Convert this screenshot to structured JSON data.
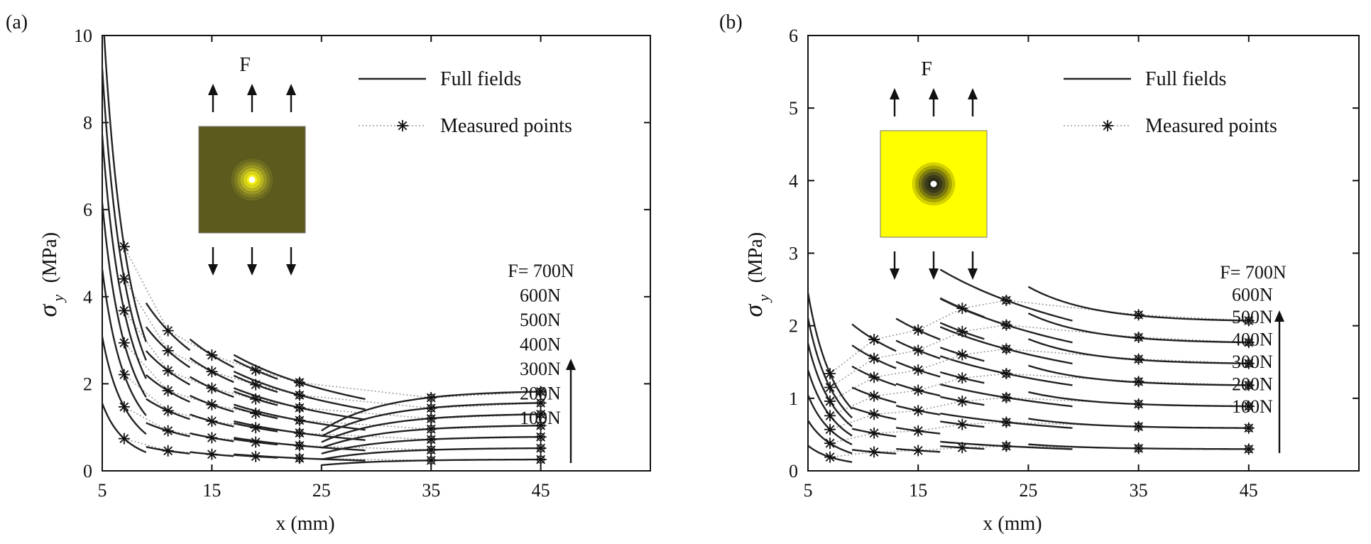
{
  "chart_data": [
    {
      "type": "line",
      "panel_label": "(a)",
      "ylabel_symbol": "σ",
      "ylabel_sub": "y",
      "ylabel_unit": "(MPa)",
      "xlabel": "x (mm)",
      "xlim": [
        5,
        55
      ],
      "ylim": [
        0,
        10
      ],
      "x_ticks": [
        5,
        15,
        25,
        35,
        45
      ],
      "y_ticks": [
        0,
        2,
        4,
        6,
        8,
        10
      ],
      "legend": {
        "full": "Full fields",
        "measured": "Measured points",
        "placement": "top-right"
      },
      "force_title": "F",
      "inset_plate_color": "#5c5a1c",
      "force_labels": [
        "F= 700N",
        "600N",
        "500N",
        "400N",
        "300N",
        "200N",
        "100N"
      ],
      "measured_x": [
        7,
        11,
        15,
        19,
        23,
        35,
        45
      ],
      "series": [
        {
          "name": "100N",
          "values": [
            0.74,
            0.46,
            0.38,
            0.33,
            0.29,
            0.24,
            0.26
          ]
        },
        {
          "name": "200N",
          "values": [
            1.47,
            0.92,
            0.76,
            0.66,
            0.58,
            0.48,
            0.52
          ]
        },
        {
          "name": "300N",
          "values": [
            2.21,
            1.38,
            1.14,
            0.99,
            0.87,
            0.72,
            0.78
          ]
        },
        {
          "name": "400N",
          "values": [
            2.94,
            1.84,
            1.52,
            1.32,
            1.16,
            0.96,
            1.04
          ]
        },
        {
          "name": "500N",
          "values": [
            3.68,
            2.3,
            1.9,
            1.65,
            1.45,
            1.2,
            1.3
          ]
        },
        {
          "name": "600N",
          "values": [
            4.41,
            2.76,
            2.28,
            1.98,
            1.74,
            1.44,
            1.56
          ]
        },
        {
          "name": "700N",
          "values": [
            5.15,
            3.22,
            2.66,
            2.31,
            2.03,
            1.68,
            1.82
          ]
        }
      ]
    },
    {
      "type": "line",
      "panel_label": "(b)",
      "ylabel_symbol": "σ",
      "ylabel_sub": "y",
      "ylabel_unit": "(MPa)",
      "xlabel": "x (mm)",
      "xlim": [
        5,
        55
      ],
      "ylim": [
        0,
        6
      ],
      "x_ticks": [
        5,
        15,
        25,
        35,
        45
      ],
      "y_ticks": [
        0,
        1,
        2,
        3,
        4,
        5,
        6
      ],
      "legend": {
        "full": "Full fields",
        "measured": "Measured points",
        "placement": "top-right"
      },
      "force_title": "F",
      "inset_plate_color": "#ffff00",
      "force_labels": [
        "F= 700N",
        "600N",
        "500N",
        "400N",
        "300N",
        "200N",
        "100N"
      ],
      "measured_x": [
        7,
        11,
        15,
        19,
        23,
        35,
        45
      ],
      "series": [
        {
          "name": "100N",
          "values": [
            0.19,
            0.26,
            0.28,
            0.32,
            0.34,
            0.31,
            0.3
          ]
        },
        {
          "name": "200N",
          "values": [
            0.38,
            0.52,
            0.55,
            0.64,
            0.67,
            0.61,
            0.59
          ]
        },
        {
          "name": "300N",
          "values": [
            0.57,
            0.78,
            0.83,
            0.96,
            1.01,
            0.92,
            0.89
          ]
        },
        {
          "name": "400N",
          "values": [
            0.76,
            1.03,
            1.11,
            1.28,
            1.34,
            1.23,
            1.18
          ]
        },
        {
          "name": "500N",
          "values": [
            0.96,
            1.29,
            1.39,
            1.6,
            1.68,
            1.54,
            1.48
          ]
        },
        {
          "name": "600N",
          "values": [
            1.15,
            1.55,
            1.66,
            1.92,
            2.01,
            1.84,
            1.77
          ]
        },
        {
          "name": "700N",
          "values": [
            1.34,
            1.81,
            1.94,
            2.24,
            2.35,
            2.15,
            2.07
          ]
        }
      ]
    }
  ]
}
